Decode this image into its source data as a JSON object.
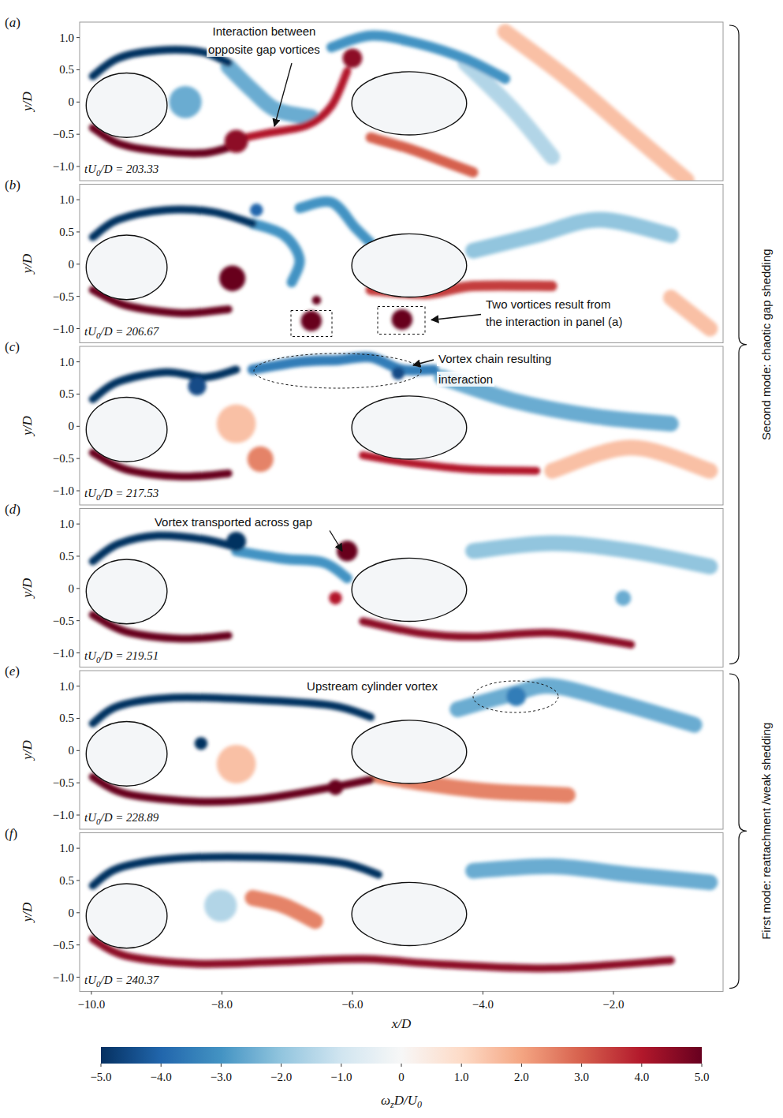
{
  "chart_data": {
    "type": "field",
    "xlabel": "x/D",
    "ylabel": "y/D",
    "xlim": [
      -10.18,
      -0.32
    ],
    "xticks": [
      {
        "value": -10,
        "label": "−10.0"
      },
      {
        "value": -8,
        "label": "−8.0"
      },
      {
        "value": -6,
        "label": "−6.0"
      },
      {
        "value": -4,
        "label": "−4.0"
      },
      {
        "value": -2,
        "label": "−2.0"
      }
    ],
    "ylim": [
      -1.22,
      1.24
    ],
    "yticks": [
      {
        "value": -1,
        "label": "−1.0"
      },
      {
        "value": -0.5,
        "label": "−0.5"
      },
      0,
      0.5,
      {
        "value": 1,
        "label": "1.0"
      }
    ],
    "cylinders": [
      {
        "x": -9.46,
        "y": -0.05,
        "rx": 0.62,
        "ry": 0.5
      },
      {
        "x": -5.13,
        "y": -0.02,
        "rx": 0.88,
        "ry": 0.49
      }
    ],
    "colorbar": {
      "title": [
        {
          "text": "ω"
        },
        {
          "text": "z",
          "sub": true
        },
        {
          "text": "D/U"
        },
        {
          "text": "0",
          "sub": true
        }
      ],
      "range": [
        -5,
        5
      ],
      "ticks": [
        {
          "value": -5,
          "label": "−5.0"
        },
        {
          "value": -4,
          "label": "−4.0"
        },
        {
          "value": -3,
          "label": "−3.0"
        },
        {
          "value": -2,
          "label": "−2.0"
        },
        {
          "value": -1,
          "label": "−1.0"
        },
        0,
        {
          "value": 1,
          "label": "1.0"
        },
        {
          "value": 2,
          "label": "2.0"
        },
        {
          "value": 3,
          "label": "3.0"
        },
        {
          "value": 4,
          "label": "4.0"
        },
        {
          "value": 5,
          "label": "5.0"
        }
      ]
    },
    "groups": [
      {
        "label": "Second mode: chaotic gap shedding",
        "first_panel": 0,
        "last_panel": 3
      },
      {
        "label": "First mode: reattachment /weak shedding",
        "first_panel": 4,
        "last_panel": 5
      }
    ],
    "panels": [
      {
        "letter": "(a)",
        "time_label": [
          {
            "text": "tU"
          },
          {
            "text": "0",
            "sub": true
          },
          {
            "text": "/D = 203.33"
          }
        ],
        "annotation": [
          "Interaction between",
          "opposite gap vortices"
        ],
        "shear_layers": [
          {
            "x": [
              -9.98,
              -9.59,
              -8.98,
              -8.32,
              -7.9
            ],
            "y": [
              0.4,
              0.68,
              0.8,
              0.78,
              0.61
            ],
            "vorticity": -5
          },
          {
            "x": [
              -7.9,
              -7.53,
              -7.17,
              -6.63
            ],
            "y": [
              0.55,
              0.18,
              -0.12,
              -0.24
            ],
            "vorticity": -2.5
          },
          {
            "x": [
              -9.98,
              -9.59,
              -8.98,
              -8.26,
              -7.78
            ],
            "y": [
              -0.4,
              -0.64,
              -0.76,
              -0.79,
              -0.67
            ],
            "vorticity": 5
          },
          {
            "x": [
              -7.78,
              -7.29,
              -6.69,
              -6.32,
              -6.08
            ],
            "y": [
              -0.58,
              -0.48,
              -0.36,
              -0.06,
              0.48
            ],
            "vorticity": 4
          },
          {
            "x": [
              -6.32,
              -5.72,
              -5.0,
              -4.27,
              -3.66
            ],
            "y": [
              0.85,
              1.03,
              0.91,
              0.67,
              0.36
            ],
            "vorticity": -3
          },
          {
            "x": [
              -4.27,
              -3.54,
              -2.94
            ],
            "y": [
              0.61,
              -0.12,
              -0.85
            ],
            "vorticity": -1.5
          },
          {
            "x": [
              -5.72,
              -5.11,
              -4.63,
              -4.15
            ],
            "y": [
              -0.55,
              -0.73,
              -0.91,
              -1.09
            ],
            "vorticity": 3
          },
          {
            "x": [
              -3.66,
              -2.7,
              -1.73,
              -0.88
            ],
            "y": [
              1.09,
              0.36,
              -0.48,
              -1.21
            ],
            "vorticity": 1.5
          }
        ],
        "vortices": [
          {
            "x": -8.56,
            "y": 0.0,
            "vorticity": -2.5,
            "radius": 0.25
          },
          {
            "x": -7.78,
            "y": -0.61,
            "vorticity": 4.5,
            "radius": 0.18
          },
          {
            "x": -6.0,
            "y": 0.68,
            "vorticity": 4.5,
            "radius": 0.15
          }
        ]
      },
      {
        "letter": "(b)",
        "time_label": [
          {
            "text": "tU"
          },
          {
            "text": "0",
            "sub": true
          },
          {
            "text": "/D = 206.67"
          }
        ],
        "annotation": [
          "Two vortices result from",
          "the interaction in panel (a)"
        ],
        "shear_layers": [
          {
            "x": [
              -9.98,
              -9.59,
              -8.86,
              -8.14,
              -7.53
            ],
            "y": [
              0.42,
              0.69,
              0.84,
              0.81,
              0.63
            ],
            "vorticity": -5
          },
          {
            "x": [
              -7.53,
              -7.05,
              -6.81,
              -6.93
            ],
            "y": [
              0.63,
              0.45,
              0.08,
              -0.28
            ],
            "vorticity": -3
          },
          {
            "x": [
              -9.98,
              -9.47,
              -8.62,
              -7.9
            ],
            "y": [
              -0.4,
              -0.64,
              -0.76,
              -0.7
            ],
            "vorticity": 5
          },
          {
            "x": [
              -5.72,
              -4.87,
              -4.15,
              -2.94
            ],
            "y": [
              -0.4,
              -0.46,
              -0.34,
              -0.34
            ],
            "vorticity": 3.5
          },
          {
            "x": [
              -6.81,
              -6.32,
              -5.96,
              -5.72
            ],
            "y": [
              0.87,
              0.96,
              0.57,
              0.33
            ],
            "vorticity": -3
          },
          {
            "x": [
              -4.15,
              -3.18,
              -2.21,
              -1.12
            ],
            "y": [
              0.21,
              0.45,
              0.69,
              0.45
            ],
            "vorticity": -2
          },
          {
            "x": [
              -1.12,
              -0.52
            ],
            "y": [
              -0.52,
              -1.0
            ],
            "vorticity": 1.5
          }
        ],
        "vortices": [
          {
            "x": -7.47,
            "y": 0.84,
            "vorticity": -4,
            "radius": 0.1
          },
          {
            "x": -7.84,
            "y": -0.22,
            "vorticity": 5,
            "radius": 0.2
          },
          {
            "x": -6.55,
            "y": -0.56,
            "vorticity": 5,
            "radius": 0.07
          },
          {
            "x": -6.63,
            "y": -0.88,
            "vorticity": 5,
            "radius": 0.16
          },
          {
            "x": -5.24,
            "y": -0.86,
            "vorticity": 5,
            "radius": 0.16
          }
        ]
      },
      {
        "letter": "(c)",
        "time_label": [
          {
            "text": "tU"
          },
          {
            "text": "0",
            "sub": true
          },
          {
            "text": "/D = 217.53"
          }
        ],
        "annotation": [
          "Vortex chain resulting",
          "interaction"
        ],
        "shear_layers": [
          {
            "x": [
              -9.98,
              -9.59,
              -8.86,
              -8.26,
              -7.78
            ],
            "y": [
              0.42,
              0.69,
              0.84,
              0.76,
              0.88
            ],
            "vorticity": -5
          },
          {
            "x": [
              -7.53,
              -6.81,
              -6.2,
              -5.72,
              -5.24,
              -4.75
            ],
            "y": [
              0.88,
              1.0,
              1.03,
              1.07,
              0.88,
              0.88
            ],
            "vorticity": -3.5
          },
          {
            "x": [
              -4.63,
              -3.54,
              -2.33,
              -1.12
            ],
            "y": [
              0.76,
              0.4,
              0.16,
              0.04
            ],
            "vorticity": -2.5
          },
          {
            "x": [
              -9.98,
              -9.47,
              -8.62,
              -7.9
            ],
            "y": [
              -0.41,
              -0.67,
              -0.78,
              -0.73
            ],
            "vorticity": 5
          },
          {
            "x": [
              -5.84,
              -5.11,
              -4.15,
              -3.18
            ],
            "y": [
              -0.45,
              -0.57,
              -0.67,
              -0.69
            ],
            "vorticity": 4
          },
          {
            "x": [
              -2.94,
              -1.73,
              -0.52
            ],
            "y": [
              -0.69,
              -0.33,
              -0.69
            ],
            "vorticity": 1.5
          }
        ],
        "vortices": [
          {
            "x": -8.38,
            "y": 0.62,
            "vorticity": -4.5,
            "radius": 0.14
          },
          {
            "x": -5.3,
            "y": 0.82,
            "vorticity": -4.5,
            "radius": 0.1
          },
          {
            "x": -7.41,
            "y": -0.51,
            "vorticity": 2.5,
            "radius": 0.2
          },
          {
            "x": -7.78,
            "y": 0.04,
            "vorticity": 1.5,
            "radius": 0.3
          }
        ]
      },
      {
        "letter": "(d)",
        "time_label": [
          {
            "text": "tU"
          },
          {
            "text": "0",
            "sub": true
          },
          {
            "text": "/D = 219.51"
          }
        ],
        "annotation": [
          "Vortex transported across gap"
        ],
        "shear_layers": [
          {
            "x": [
              -9.98,
              -9.59,
              -8.98,
              -8.26,
              -7.78
            ],
            "y": [
              0.42,
              0.69,
              0.82,
              0.76,
              0.64
            ],
            "vorticity": -5
          },
          {
            "x": [
              -7.78,
              -7.05,
              -6.44,
              -6.08
            ],
            "y": [
              0.58,
              0.46,
              0.4,
              0.16
            ],
            "vorticity": -3
          },
          {
            "x": [
              -9.98,
              -9.47,
              -8.62,
              -7.9
            ],
            "y": [
              -0.41,
              -0.67,
              -0.78,
              -0.73
            ],
            "vorticity": 5
          },
          {
            "x": [
              -5.84,
              -4.99,
              -4.15,
              -2.94,
              -1.73
            ],
            "y": [
              -0.51,
              -0.69,
              -0.75,
              -0.69,
              -0.87
            ],
            "vorticity": 4.5
          },
          {
            "x": [
              -4.15,
              -2.94,
              -1.73,
              -0.52
            ],
            "y": [
              0.58,
              0.7,
              0.58,
              0.34
            ],
            "vorticity": -2
          }
        ],
        "vortices": [
          {
            "x": -7.78,
            "y": 0.73,
            "vorticity": -5,
            "radius": 0.15
          },
          {
            "x": -6.08,
            "y": 0.58,
            "vorticity": 5,
            "radius": 0.16
          },
          {
            "x": -6.26,
            "y": -0.15,
            "vorticity": 4,
            "radius": 0.1
          },
          {
            "x": -1.85,
            "y": -0.15,
            "vorticity": -2.5,
            "radius": 0.12
          }
        ]
      },
      {
        "letter": "(e)",
        "time_label": [
          {
            "text": "tU"
          },
          {
            "text": "0",
            "sub": true
          },
          {
            "text": "/D = 228.89"
          }
        ],
        "annotation": [
          "Upstream cylinder vortex"
        ],
        "shear_layers": [
          {
            "x": [
              -9.98,
              -9.59,
              -8.74,
              -7.53,
              -6.32,
              -5.72
            ],
            "y": [
              0.42,
              0.69,
              0.82,
              0.79,
              0.7,
              0.52
            ],
            "vorticity": -5
          },
          {
            "x": [
              -4.39,
              -3.54,
              -2.94,
              -1.97,
              -0.76
            ],
            "y": [
              0.64,
              0.88,
              1.0,
              0.76,
              0.4
            ],
            "vorticity": -2.5
          },
          {
            "x": [
              -9.98,
              -9.47,
              -8.38,
              -7.41,
              -6.32,
              -5.72
            ],
            "y": [
              -0.41,
              -0.67,
              -0.79,
              -0.75,
              -0.57,
              -0.45
            ],
            "vorticity": 5
          },
          {
            "x": [
              -5.6,
              -4.87,
              -3.91,
              -2.7
            ],
            "y": [
              -0.39,
              -0.51,
              -0.63,
              -0.69
            ],
            "vorticity": 2.5
          }
        ],
        "vortices": [
          {
            "x": -3.49,
            "y": 0.84,
            "vorticity": -3.5,
            "radius": 0.15
          },
          {
            "x": -8.32,
            "y": 0.11,
            "vorticity": -5,
            "radius": 0.1
          },
          {
            "x": -6.26,
            "y": -0.57,
            "vorticity": 5,
            "radius": 0.12
          },
          {
            "x": -7.78,
            "y": -0.21,
            "vorticity": 1.5,
            "radius": 0.3
          }
        ]
      },
      {
        "letter": "(f)",
        "time_label": [
          {
            "text": "tU"
          },
          {
            "text": "0",
            "sub": true
          },
          {
            "text": "/D = 240.37"
          }
        ],
        "annotation": [],
        "shear_layers": [
          {
            "x": [
              -9.98,
              -9.59,
              -8.74,
              -7.41,
              -6.2,
              -5.6
            ],
            "y": [
              0.42,
              0.69,
              0.84,
              0.86,
              0.78,
              0.59
            ],
            "vorticity": -5
          },
          {
            "x": [
              -4.15,
              -2.94,
              -1.73,
              -0.52
            ],
            "y": [
              0.65,
              0.72,
              0.59,
              0.47
            ],
            "vorticity": -2.5
          },
          {
            "x": [
              -9.98,
              -9.47,
              -8.38,
              -7.17,
              -5.84,
              -4.63,
              -2.94,
              -1.12
            ],
            "y": [
              -0.41,
              -0.67,
              -0.79,
              -0.76,
              -0.72,
              -0.8,
              -0.86,
              -0.74
            ],
            "vorticity": 4.5
          },
          {
            "x": [
              -7.53,
              -7.05,
              -6.57
            ],
            "y": [
              0.23,
              0.11,
              -0.13
            ],
            "vorticity": 2.5
          }
        ],
        "vortices": [
          {
            "x": -8.02,
            "y": 0.11,
            "vorticity": -1.5,
            "radius": 0.25
          }
        ]
      }
    ]
  }
}
